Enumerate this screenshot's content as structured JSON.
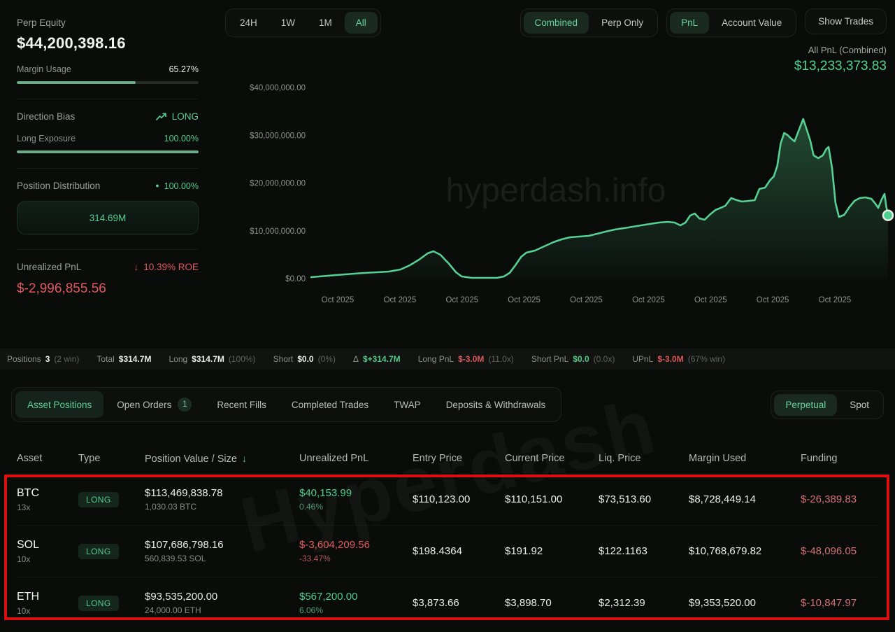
{
  "sidebar": {
    "perp_equity": {
      "label": "Perp Equity",
      "value": "$44,200,398.16"
    },
    "margin_usage": {
      "label": "Margin Usage",
      "value": "65.27%",
      "pct": 65.27
    },
    "direction_bias": {
      "label": "Direction Bias",
      "value": "LONG"
    },
    "long_exposure": {
      "label": "Long Exposure",
      "value": "100.00%",
      "pct": 100
    },
    "position_distribution": {
      "label": "Position Distribution",
      "value": "100.00%",
      "total": "314.69M"
    },
    "unrealized_pnl": {
      "label": "Unrealized PnL",
      "roe": "10.39% ROE",
      "value": "$-2,996,855.56"
    }
  },
  "toolbar": {
    "time_ranges": [
      {
        "label": "24H",
        "active": false
      },
      {
        "label": "1W",
        "active": false
      },
      {
        "label": "1M",
        "active": false
      },
      {
        "label": "All",
        "active": true
      }
    ],
    "mode_toggle": [
      {
        "label": "Combined",
        "active": true
      },
      {
        "label": "Perp Only",
        "active": false
      }
    ],
    "metric_toggle": [
      {
        "label": "PnL",
        "active": true
      },
      {
        "label": "Account Value",
        "active": false
      }
    ],
    "show_trades": "Show Trades"
  },
  "chart_header": {
    "title": "All PnL (Combined)",
    "value": "$13,233,373.83"
  },
  "chart_data": {
    "type": "area",
    "title": "All PnL (Combined)",
    "current_value_usd": 13233373.83,
    "watermark": "hyperdash.info",
    "ylim_millions": [
      0,
      40
    ],
    "grid": false,
    "y_ticks": [
      {
        "v": 0,
        "label": "$0.00"
      },
      {
        "v": 10,
        "label": "$10,000,000.00"
      },
      {
        "v": 20,
        "label": "$20,000,000.00"
      },
      {
        "v": 30,
        "label": "$30,000,000.00"
      },
      {
        "v": 40,
        "label": "$40,000,000.00"
      }
    ],
    "x_ticks": [
      "Oct 2025",
      "Oct 2025",
      "Oct 2025",
      "Oct 2025",
      "Oct 2025",
      "Oct 2025",
      "Oct 2025",
      "Oct 2025",
      "Oct 2025"
    ],
    "series": [
      {
        "name": "All PnL (Combined)",
        "unit": "USD millions",
        "color": "#57d094",
        "points": [
          [
            0.0,
            0.29
          ],
          [
            0.043,
            0.73
          ],
          [
            0.092,
            1.17
          ],
          [
            0.135,
            1.47
          ],
          [
            0.155,
            1.9
          ],
          [
            0.171,
            2.78
          ],
          [
            0.187,
            3.96
          ],
          [
            0.202,
            5.27
          ],
          [
            0.212,
            5.71
          ],
          [
            0.224,
            4.98
          ],
          [
            0.239,
            3.08
          ],
          [
            0.251,
            1.32
          ],
          [
            0.261,
            0.44
          ],
          [
            0.278,
            0.15
          ],
          [
            0.3,
            0.15
          ],
          [
            0.322,
            0.15
          ],
          [
            0.334,
            0.44
          ],
          [
            0.344,
            1.17
          ],
          [
            0.354,
            2.78
          ],
          [
            0.364,
            4.54
          ],
          [
            0.373,
            5.42
          ],
          [
            0.388,
            5.86
          ],
          [
            0.404,
            6.74
          ],
          [
            0.42,
            7.62
          ],
          [
            0.434,
            8.21
          ],
          [
            0.449,
            8.64
          ],
          [
            0.465,
            8.79
          ],
          [
            0.481,
            8.94
          ],
          [
            0.496,
            9.38
          ],
          [
            0.51,
            9.82
          ],
          [
            0.526,
            10.26
          ],
          [
            0.542,
            10.55
          ],
          [
            0.557,
            10.84
          ],
          [
            0.572,
            11.14
          ],
          [
            0.587,
            11.43
          ],
          [
            0.603,
            11.72
          ],
          [
            0.618,
            11.87
          ],
          [
            0.63,
            11.72
          ],
          [
            0.64,
            11.14
          ],
          [
            0.649,
            11.72
          ],
          [
            0.657,
            13.19
          ],
          [
            0.665,
            13.63
          ],
          [
            0.673,
            12.6
          ],
          [
            0.682,
            12.31
          ],
          [
            0.692,
            13.48
          ],
          [
            0.701,
            14.36
          ],
          [
            0.71,
            14.8
          ],
          [
            0.718,
            15.24
          ],
          [
            0.728,
            16.85
          ],
          [
            0.738,
            16.41
          ],
          [
            0.747,
            16.12
          ],
          [
            0.759,
            16.26
          ],
          [
            0.769,
            16.41
          ],
          [
            0.777,
            18.75
          ],
          [
            0.787,
            19.05
          ],
          [
            0.795,
            20.51
          ],
          [
            0.802,
            21.39
          ],
          [
            0.808,
            23.59
          ],
          [
            0.814,
            28.28
          ],
          [
            0.82,
            30.48
          ],
          [
            0.826,
            30.04
          ],
          [
            0.832,
            29.3
          ],
          [
            0.838,
            28.72
          ],
          [
            0.846,
            31.21
          ],
          [
            0.853,
            33.41
          ],
          [
            0.859,
            31.21
          ],
          [
            0.865,
            29.01
          ],
          [
            0.871,
            25.79
          ],
          [
            0.879,
            25.2
          ],
          [
            0.887,
            25.79
          ],
          [
            0.893,
            27.11
          ],
          [
            0.897,
            27.55
          ],
          [
            0.903,
            23.15
          ],
          [
            0.909,
            15.82
          ],
          [
            0.915,
            12.89
          ],
          [
            0.924,
            13.33
          ],
          [
            0.933,
            14.95
          ],
          [
            0.942,
            16.26
          ],
          [
            0.951,
            16.85
          ],
          [
            0.961,
            16.99
          ],
          [
            0.971,
            16.7
          ],
          [
            0.978,
            15.68
          ],
          [
            0.983,
            14.8
          ],
          [
            0.989,
            16.56
          ],
          [
            0.994,
            17.73
          ],
          [
            0.997,
            15.09
          ],
          [
            1.0,
            13.23
          ]
        ]
      }
    ]
  },
  "status_bar": {
    "items": [
      {
        "label": "Positions",
        "value": "3",
        "paren": "(2 win)",
        "tone": "white"
      },
      {
        "label": "Total",
        "value": "$314.7M",
        "paren": "",
        "tone": "white"
      },
      {
        "label": "Long",
        "value": "$314.7M",
        "paren": "(100%)",
        "tone": "white"
      },
      {
        "label": "Short",
        "value": "$0.0",
        "paren": "(0%)",
        "tone": "white"
      },
      {
        "label": "Δ",
        "value": "$+314.7M",
        "paren": "",
        "tone": "green"
      },
      {
        "label": "Long PnL",
        "value": "$-3.0M",
        "paren": "(11.0x)",
        "tone": "red"
      },
      {
        "label": "Short PnL",
        "value": "$0.0",
        "paren": "(0.0x)",
        "tone": "green"
      },
      {
        "label": "UPnL",
        "value": "$-3.0M",
        "paren": "(67% win)",
        "tone": "red"
      }
    ]
  },
  "tabs": {
    "items": [
      {
        "label": "Asset Positions",
        "active": true,
        "badge": ""
      },
      {
        "label": "Open Orders",
        "active": false,
        "badge": "1"
      },
      {
        "label": "Recent Fills",
        "active": false,
        "badge": ""
      },
      {
        "label": "Completed Trades",
        "active": false,
        "badge": ""
      },
      {
        "label": "TWAP",
        "active": false,
        "badge": ""
      },
      {
        "label": "Deposits & Withdrawals",
        "active": false,
        "badge": ""
      }
    ],
    "market_toggle": [
      {
        "label": "Perpetual",
        "active": true
      },
      {
        "label": "Spot",
        "active": false
      }
    ]
  },
  "table": {
    "watermark": "Hyperdash",
    "columns": [
      {
        "label": "Asset",
        "sort": ""
      },
      {
        "label": "Type",
        "sort": ""
      },
      {
        "label": "Position Value / Size",
        "sort": "desc"
      },
      {
        "label": "Unrealized PnL",
        "sort": ""
      },
      {
        "label": "Entry Price",
        "sort": ""
      },
      {
        "label": "Current Price",
        "sort": ""
      },
      {
        "label": "Liq. Price",
        "sort": ""
      },
      {
        "label": "Margin Used",
        "sort": ""
      },
      {
        "label": "Funding",
        "sort": ""
      }
    ],
    "rows": [
      {
        "asset": "BTC",
        "leverage": "13x",
        "type": "LONG",
        "position_value": "$113,469,838.78",
        "size": "1,030.03 BTC",
        "upnl": "$40,153.99",
        "upnl_pct": "0.46%",
        "upnl_tone": "pos",
        "entry": "$110,123.00",
        "current": "$110,151.00",
        "liq": "$73,513.60",
        "margin": "$8,728,449.14",
        "funding": "$-26,389.83"
      },
      {
        "asset": "SOL",
        "leverage": "10x",
        "type": "LONG",
        "position_value": "$107,686,798.16",
        "size": "560,839.53 SOL",
        "upnl": "$-3,604,209.56",
        "upnl_pct": "-33.47%",
        "upnl_tone": "neg",
        "entry": "$198.4364",
        "current": "$191.92",
        "liq": "$122.1163",
        "margin": "$10,768,679.82",
        "funding": "$-48,096.05"
      },
      {
        "asset": "ETH",
        "leverage": "10x",
        "type": "LONG",
        "position_value": "$93,535,200.00",
        "size": "24,000.00 ETH",
        "upnl": "$567,200.00",
        "upnl_pct": "6.06%",
        "upnl_tone": "pos",
        "entry": "$3,873.66",
        "current": "$3,898.70",
        "liq": "$2,312.39",
        "margin": "$9,353,520.00",
        "funding": "$-10,847.97"
      }
    ]
  },
  "colors": {
    "green": "#56cd92",
    "red": "#e0595e",
    "line": "#57d094",
    "annotation_red": "#da0f0f"
  }
}
